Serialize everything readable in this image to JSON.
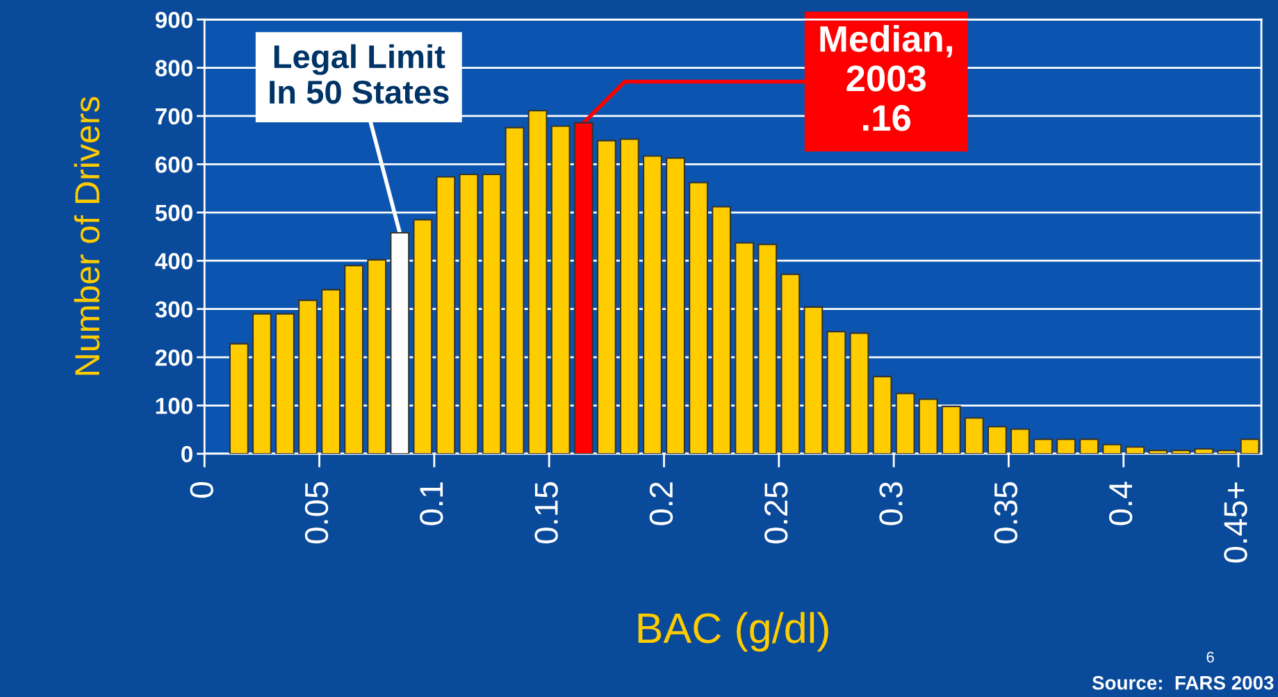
{
  "chart_data": {
    "type": "bar",
    "xlabel": "BAC (g/dl)",
    "ylabel": "Number of Drivers",
    "x": [
      0.015,
      0.025,
      0.035,
      0.045,
      0.055,
      0.065,
      0.075,
      0.085,
      0.095,
      0.105,
      0.115,
      0.125,
      0.135,
      0.145,
      0.155,
      0.165,
      0.175,
      0.185,
      0.195,
      0.205,
      0.215,
      0.225,
      0.235,
      0.245,
      0.255,
      0.265,
      0.275,
      0.285,
      0.295,
      0.305,
      0.315,
      0.325,
      0.335,
      0.345,
      0.355,
      0.365,
      0.375,
      0.385,
      0.395,
      0.405,
      0.415,
      0.425,
      0.435,
      0.445,
      0.455
    ],
    "values": [
      228,
      290,
      290,
      318,
      340,
      390,
      402,
      458,
      485,
      574,
      579,
      579,
      676,
      711,
      679,
      686,
      649,
      652,
      617,
      613,
      562,
      512,
      437,
      434,
      372,
      304,
      253,
      250,
      160,
      125,
      113,
      98,
      74,
      56,
      51,
      30,
      30,
      30,
      19,
      14,
      7,
      7,
      10,
      7,
      30
    ],
    "colors": [
      "#ffcc00",
      "#ffcc00",
      "#ffcc00",
      "#ffcc00",
      "#ffcc00",
      "#ffcc00",
      "#ffcc00",
      "#ffffff",
      "#ffcc00",
      "#ffcc00",
      "#ffcc00",
      "#ffcc00",
      "#ffcc00",
      "#ffcc00",
      "#ffcc00",
      "#ff0000",
      "#ffcc00",
      "#ffcc00",
      "#ffcc00",
      "#ffcc00",
      "#ffcc00",
      "#ffcc00",
      "#ffcc00",
      "#ffcc00",
      "#ffcc00",
      "#ffcc00",
      "#ffcc00",
      "#ffcc00",
      "#ffcc00",
      "#ffcc00",
      "#ffcc00",
      "#ffcc00",
      "#ffcc00",
      "#ffcc00",
      "#ffcc00",
      "#ffcc00",
      "#ffcc00",
      "#ffcc00",
      "#ffcc00",
      "#ffcc00",
      "#ffcc00",
      "#ffcc00",
      "#ffcc00",
      "#ffcc00",
      "#ffcc00"
    ],
    "xlim": [
      0,
      0.46
    ],
    "xticks": [
      0,
      0.05,
      0.1,
      0.15,
      0.2,
      0.25,
      0.3,
      0.35,
      0.4,
      {
        "value": 0.45,
        "label": "0.45+"
      }
    ],
    "ylim": [
      0,
      900
    ],
    "yticks": [
      0,
      100,
      200,
      300,
      400,
      500,
      600,
      700,
      800,
      900
    ],
    "grid": "y",
    "annotations": [
      {
        "text": "Legal Limit\nIn 50 States",
        "x": 0.085,
        "y": 458
      },
      {
        "text": "Median,\n2003\n.16",
        "x": 0.165,
        "y": 686
      },
      "Source:  FARS 2003",
      "6"
    ]
  }
}
